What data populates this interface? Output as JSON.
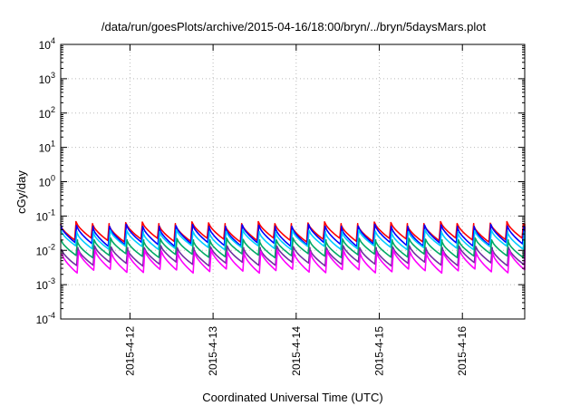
{
  "chart_data": {
    "type": "line",
    "title": "/data/run/goesPlots/archive/2015-04-16/18:00/bryn/../bryn/5daysMars.plot",
    "xlabel": "Coordinated Universal Time (UTC)",
    "ylabel": "cGy/day",
    "yscale": "log",
    "ylim": [
      0.0001,
      10000
    ],
    "y_ticks": [
      {
        "base": "10",
        "exp": "-4"
      },
      {
        "base": "10",
        "exp": "-3"
      },
      {
        "base": "10",
        "exp": "-2"
      },
      {
        "base": "10",
        "exp": "-1"
      },
      {
        "base": "10",
        "exp": "0"
      },
      {
        "base": "10",
        "exp": "1"
      },
      {
        "base": "10",
        "exp": "2"
      },
      {
        "base": "10",
        "exp": "3"
      },
      {
        "base": "10",
        "exp": "4"
      }
    ],
    "x_range": [
      "2015-04-11 04:00",
      "2015-04-16 18:00"
    ],
    "x_ticks": [
      "2015-4-12",
      "2015-4-13",
      "2015-4-14",
      "2015-4-15",
      "2015-4-16"
    ],
    "x_tick_dates": [
      "2015-04-12 00:00",
      "2015-04-13 00:00",
      "2015-04-14 00:00",
      "2015-04-15 00:00",
      "2015-04-16 00:00"
    ],
    "grid": true,
    "pattern": "sawtooth, ~5 cycles per day (rise then gradual decay)",
    "series": [
      {
        "color": "#ff0000",
        "peak": 0.06,
        "trough": 0.02
      },
      {
        "color": "#0000ff",
        "peak": 0.05,
        "trough": 0.015
      },
      {
        "color": "#00ccff",
        "peak": 0.035,
        "trough": 0.012
      },
      {
        "color": "#00aa66",
        "peak": 0.02,
        "trough": 0.007
      },
      {
        "color": "#7030a0",
        "peak": 0.012,
        "trough": 0.004
      },
      {
        "color": "#ff00ff",
        "peak": 0.009,
        "trough": 0.0025
      }
    ]
  }
}
